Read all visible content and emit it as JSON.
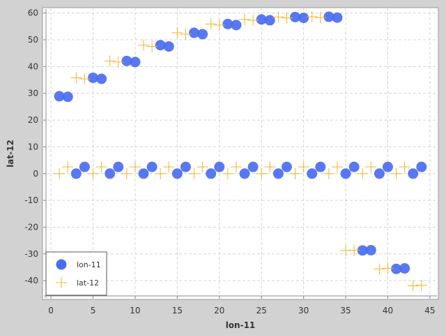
{
  "chart_data": {
    "type": "scatter",
    "xlabel": "lon-11",
    "ylabel": "lat-12",
    "xlim": [
      -1,
      46
    ],
    "ylim": [
      -47,
      62
    ],
    "xticks": [
      0,
      5,
      10,
      15,
      20,
      25,
      30,
      35,
      40,
      45
    ],
    "yticks": [
      -40,
      -30,
      -20,
      -10,
      0,
      10,
      20,
      30,
      40,
      50,
      60
    ],
    "grid": true,
    "legend_position": "bottom-left",
    "series": [
      {
        "name": "lon-11",
        "marker": "circle",
        "color": "#4a6cf0",
        "points": [
          [
            1,
            28.9
          ],
          [
            2,
            28.7
          ],
          [
            3,
            0
          ],
          [
            4,
            2.5
          ],
          [
            5,
            35.8
          ],
          [
            6,
            35.4
          ],
          [
            7,
            0
          ],
          [
            8,
            2.5
          ],
          [
            9,
            42.1
          ],
          [
            10,
            41.7
          ],
          [
            11,
            0
          ],
          [
            12,
            2.5
          ],
          [
            13,
            48.0
          ],
          [
            14,
            47.5
          ],
          [
            15,
            0
          ],
          [
            16,
            2.5
          ],
          [
            17,
            52.6
          ],
          [
            18,
            52.1
          ],
          [
            19,
            0
          ],
          [
            20,
            2.5
          ],
          [
            21,
            55.9
          ],
          [
            22,
            55.5
          ],
          [
            23,
            0
          ],
          [
            24,
            2.5
          ],
          [
            25,
            57.6
          ],
          [
            26,
            57.3
          ],
          [
            27,
            0
          ],
          [
            28,
            2.5
          ],
          [
            29,
            58.5
          ],
          [
            30,
            58.2
          ],
          [
            31,
            0
          ],
          [
            32,
            2.5
          ],
          [
            33,
            58.6
          ],
          [
            34,
            58.3
          ],
          [
            35,
            0
          ],
          [
            36,
            2.5
          ],
          [
            37,
            -28.7
          ],
          [
            38,
            -28.6
          ],
          [
            39,
            0
          ],
          [
            40,
            2.5
          ],
          [
            41,
            -35.6
          ],
          [
            42,
            -35.4
          ],
          [
            43,
            0
          ],
          [
            44,
            2.5
          ]
        ]
      },
      {
        "name": "lat-12",
        "marker": "plus",
        "color": "#f0b428",
        "points": [
          [
            1,
            0
          ],
          [
            2,
            2.5
          ],
          [
            3,
            35.8
          ],
          [
            4,
            35.4
          ],
          [
            5,
            0
          ],
          [
            6,
            2.5
          ],
          [
            7,
            42.1
          ],
          [
            8,
            41.7
          ],
          [
            9,
            0
          ],
          [
            10,
            2.5
          ],
          [
            11,
            48.0
          ],
          [
            12,
            47.5
          ],
          [
            13,
            0
          ],
          [
            14,
            2.5
          ],
          [
            15,
            52.6
          ],
          [
            16,
            52.1
          ],
          [
            17,
            0
          ],
          [
            18,
            2.5
          ],
          [
            19,
            55.9
          ],
          [
            20,
            55.5
          ],
          [
            21,
            0
          ],
          [
            22,
            2.5
          ],
          [
            23,
            57.6
          ],
          [
            24,
            57.3
          ],
          [
            25,
            0
          ],
          [
            26,
            2.5
          ],
          [
            27,
            58.5
          ],
          [
            28,
            58.2
          ],
          [
            29,
            0
          ],
          [
            30,
            2.5
          ],
          [
            31,
            58.6
          ],
          [
            32,
            58.3
          ],
          [
            33,
            0
          ],
          [
            34,
            2.5
          ],
          [
            35,
            -28.7
          ],
          [
            36,
            -28.6
          ],
          [
            37,
            0
          ],
          [
            38,
            2.5
          ],
          [
            39,
            -35.6
          ],
          [
            40,
            -35.4
          ],
          [
            41,
            0
          ],
          [
            42,
            2.5
          ],
          [
            43,
            -41.9
          ],
          [
            44,
            -41.7
          ]
        ]
      }
    ]
  }
}
